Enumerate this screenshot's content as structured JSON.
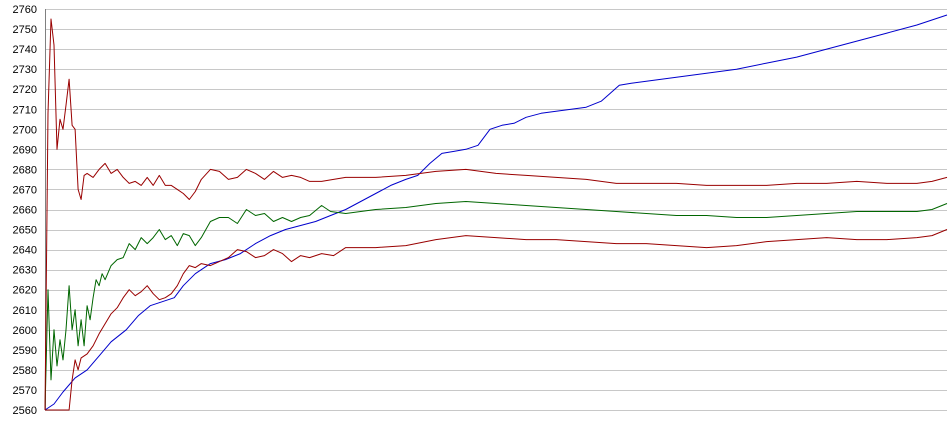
{
  "chart_data": {
    "type": "line",
    "title": "",
    "xlabel": "",
    "ylabel": "",
    "ylim": [
      2560,
      2760
    ],
    "xlim": [
      0,
      300
    ],
    "yticks": [
      2560,
      2570,
      2580,
      2590,
      2600,
      2610,
      2620,
      2630,
      2640,
      2650,
      2660,
      2670,
      2680,
      2690,
      2700,
      2710,
      2720,
      2730,
      2740,
      2750,
      2760
    ],
    "grid": true,
    "legend": "none",
    "series": [
      {
        "color": "#0000cc",
        "points": [
          [
            0,
            2560
          ],
          [
            3,
            2563
          ],
          [
            6,
            2569
          ],
          [
            10,
            2576
          ],
          [
            14,
            2580
          ],
          [
            18,
            2587
          ],
          [
            22,
            2594
          ],
          [
            27,
            2600
          ],
          [
            31,
            2607
          ],
          [
            35,
            2612
          ],
          [
            39,
            2614
          ],
          [
            43,
            2616
          ],
          [
            46,
            2622
          ],
          [
            50,
            2628
          ],
          [
            55,
            2633
          ],
          [
            60,
            2635
          ],
          [
            65,
            2638
          ],
          [
            70,
            2643
          ],
          [
            75,
            2647
          ],
          [
            80,
            2650
          ],
          [
            85,
            2652
          ],
          [
            90,
            2654
          ],
          [
            95,
            2657
          ],
          [
            100,
            2660
          ],
          [
            105,
            2664
          ],
          [
            110,
            2668
          ],
          [
            115,
            2672
          ],
          [
            120,
            2675
          ],
          [
            124,
            2677
          ],
          [
            128,
            2683
          ],
          [
            132,
            2688
          ],
          [
            136,
            2689
          ],
          [
            140,
            2690
          ],
          [
            144,
            2692
          ],
          [
            148,
            2700
          ],
          [
            152,
            2702
          ],
          [
            156,
            2703
          ],
          [
            160,
            2706
          ],
          [
            165,
            2708
          ],
          [
            170,
            2709
          ],
          [
            175,
            2710
          ],
          [
            180,
            2711
          ],
          [
            185,
            2714
          ],
          [
            188,
            2718
          ],
          [
            191,
            2722
          ],
          [
            195,
            2723
          ],
          [
            200,
            2724
          ],
          [
            210,
            2726
          ],
          [
            220,
            2728
          ],
          [
            230,
            2730
          ],
          [
            240,
            2733
          ],
          [
            250,
            2736
          ],
          [
            260,
            2740
          ],
          [
            270,
            2744
          ],
          [
            280,
            2748
          ],
          [
            290,
            2752
          ],
          [
            300,
            2757
          ]
        ]
      },
      {
        "color": "#006600",
        "points": [
          [
            0,
            2560
          ],
          [
            1,
            2620
          ],
          [
            2,
            2575
          ],
          [
            3,
            2600
          ],
          [
            4,
            2582
          ],
          [
            5,
            2595
          ],
          [
            6,
            2585
          ],
          [
            7,
            2600
          ],
          [
            8,
            2622
          ],
          [
            9,
            2600
          ],
          [
            10,
            2610
          ],
          [
            11,
            2592
          ],
          [
            12,
            2605
          ],
          [
            13,
            2592
          ],
          [
            14,
            2612
          ],
          [
            15,
            2605
          ],
          [
            16,
            2616
          ],
          [
            17,
            2625
          ],
          [
            18,
            2622
          ],
          [
            19,
            2628
          ],
          [
            20,
            2625
          ],
          [
            22,
            2632
          ],
          [
            24,
            2635
          ],
          [
            26,
            2636
          ],
          [
            28,
            2643
          ],
          [
            30,
            2640
          ],
          [
            32,
            2646
          ],
          [
            34,
            2643
          ],
          [
            36,
            2646
          ],
          [
            38,
            2650
          ],
          [
            40,
            2645
          ],
          [
            42,
            2647
          ],
          [
            44,
            2642
          ],
          [
            46,
            2648
          ],
          [
            48,
            2647
          ],
          [
            50,
            2642
          ],
          [
            52,
            2646
          ],
          [
            55,
            2654
          ],
          [
            58,
            2656
          ],
          [
            61,
            2656
          ],
          [
            64,
            2653
          ],
          [
            67,
            2660
          ],
          [
            70,
            2657
          ],
          [
            73,
            2658
          ],
          [
            76,
            2654
          ],
          [
            79,
            2656
          ],
          [
            82,
            2654
          ],
          [
            85,
            2656
          ],
          [
            88,
            2657
          ],
          [
            92,
            2662
          ],
          [
            95,
            2659
          ],
          [
            100,
            2658
          ],
          [
            110,
            2660
          ],
          [
            120,
            2661
          ],
          [
            130,
            2663
          ],
          [
            140,
            2664
          ],
          [
            150,
            2663
          ],
          [
            160,
            2662
          ],
          [
            170,
            2661
          ],
          [
            180,
            2660
          ],
          [
            190,
            2659
          ],
          [
            200,
            2658
          ],
          [
            210,
            2657
          ],
          [
            220,
            2657
          ],
          [
            230,
            2656
          ],
          [
            240,
            2656
          ],
          [
            250,
            2657
          ],
          [
            260,
            2658
          ],
          [
            270,
            2659
          ],
          [
            280,
            2659
          ],
          [
            290,
            2659
          ],
          [
            295,
            2660
          ],
          [
            300,
            2663
          ]
        ]
      },
      {
        "color": "#990000",
        "points": [
          [
            0,
            2560
          ],
          [
            1,
            2708
          ],
          [
            2,
            2755
          ],
          [
            3,
            2742
          ],
          [
            4,
            2690
          ],
          [
            5,
            2705
          ],
          [
            6,
            2700
          ],
          [
            7,
            2712
          ],
          [
            8,
            2725
          ],
          [
            9,
            2702
          ],
          [
            10,
            2700
          ],
          [
            11,
            2670
          ],
          [
            12,
            2665
          ],
          [
            13,
            2677
          ],
          [
            14,
            2678
          ],
          [
            16,
            2676
          ],
          [
            18,
            2680
          ],
          [
            20,
            2683
          ],
          [
            22,
            2678
          ],
          [
            24,
            2680
          ],
          [
            26,
            2676
          ],
          [
            28,
            2673
          ],
          [
            30,
            2674
          ],
          [
            32,
            2672
          ],
          [
            34,
            2676
          ],
          [
            36,
            2672
          ],
          [
            38,
            2677
          ],
          [
            40,
            2672
          ],
          [
            42,
            2672
          ],
          [
            44,
            2670
          ],
          [
            46,
            2668
          ],
          [
            48,
            2665
          ],
          [
            50,
            2669
          ],
          [
            52,
            2675
          ],
          [
            55,
            2680
          ],
          [
            58,
            2679
          ],
          [
            61,
            2675
          ],
          [
            64,
            2676
          ],
          [
            67,
            2680
          ],
          [
            70,
            2678
          ],
          [
            73,
            2675
          ],
          [
            76,
            2679
          ],
          [
            79,
            2676
          ],
          [
            82,
            2677
          ],
          [
            85,
            2676
          ],
          [
            88,
            2674
          ],
          [
            92,
            2674
          ],
          [
            96,
            2675
          ],
          [
            100,
            2676
          ],
          [
            110,
            2676
          ],
          [
            120,
            2677
          ],
          [
            130,
            2679
          ],
          [
            140,
            2680
          ],
          [
            150,
            2678
          ],
          [
            160,
            2677
          ],
          [
            170,
            2676
          ],
          [
            180,
            2675
          ],
          [
            190,
            2673
          ],
          [
            200,
            2673
          ],
          [
            210,
            2673
          ],
          [
            220,
            2672
          ],
          [
            230,
            2672
          ],
          [
            240,
            2672
          ],
          [
            250,
            2673
          ],
          [
            260,
            2673
          ],
          [
            270,
            2674
          ],
          [
            280,
            2673
          ],
          [
            290,
            2673
          ],
          [
            295,
            2674
          ],
          [
            300,
            2676
          ]
        ]
      },
      {
        "color": "#990000",
        "points": [
          [
            0,
            2560
          ],
          [
            8,
            2560
          ],
          [
            9,
            2575
          ],
          [
            10,
            2585
          ],
          [
            11,
            2580
          ],
          [
            12,
            2586
          ],
          [
            14,
            2588
          ],
          [
            16,
            2592
          ],
          [
            18,
            2598
          ],
          [
            20,
            2603
          ],
          [
            22,
            2608
          ],
          [
            24,
            2611
          ],
          [
            26,
            2616
          ],
          [
            28,
            2620
          ],
          [
            30,
            2617
          ],
          [
            32,
            2619
          ],
          [
            34,
            2622
          ],
          [
            36,
            2618
          ],
          [
            38,
            2615
          ],
          [
            40,
            2616
          ],
          [
            42,
            2618
          ],
          [
            44,
            2622
          ],
          [
            46,
            2628
          ],
          [
            48,
            2632
          ],
          [
            50,
            2631
          ],
          [
            52,
            2633
          ],
          [
            55,
            2632
          ],
          [
            58,
            2634
          ],
          [
            61,
            2636
          ],
          [
            64,
            2640
          ],
          [
            67,
            2639
          ],
          [
            70,
            2636
          ],
          [
            73,
            2637
          ],
          [
            76,
            2640
          ],
          [
            79,
            2638
          ],
          [
            82,
            2634
          ],
          [
            85,
            2637
          ],
          [
            88,
            2636
          ],
          [
            92,
            2638
          ],
          [
            96,
            2637
          ],
          [
            100,
            2641
          ],
          [
            110,
            2641
          ],
          [
            120,
            2642
          ],
          [
            130,
            2645
          ],
          [
            140,
            2647
          ],
          [
            150,
            2646
          ],
          [
            160,
            2645
          ],
          [
            170,
            2645
          ],
          [
            180,
            2644
          ],
          [
            190,
            2643
          ],
          [
            200,
            2643
          ],
          [
            210,
            2642
          ],
          [
            220,
            2641
          ],
          [
            230,
            2642
          ],
          [
            240,
            2644
          ],
          [
            250,
            2645
          ],
          [
            260,
            2646
          ],
          [
            270,
            2645
          ],
          [
            280,
            2645
          ],
          [
            290,
            2646
          ],
          [
            295,
            2647
          ],
          [
            300,
            2650
          ]
        ]
      }
    ]
  }
}
